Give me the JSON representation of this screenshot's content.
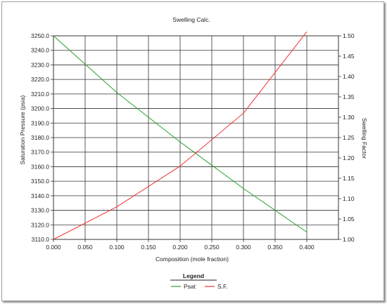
{
  "chart_data": {
    "type": "line",
    "title": "Swelling Calc.",
    "xlabel": "Composition (mole fraction)",
    "ylabel_left": "Saturation Pressure (psia)",
    "ylabel_right": "Swelling Factor",
    "xlim": [
      0,
      0.45
    ],
    "ylim_left": [
      3110,
      3250
    ],
    "ylim_right": [
      1.0,
      1.5
    ],
    "x_ticks": [
      "0.000",
      "0.050",
      "0.100",
      "0.150",
      "0.200",
      "0.250",
      "0.300",
      "0.350",
      "0.400"
    ],
    "y_left_ticks": [
      "3110.0",
      "3120.0",
      "3130.0",
      "3140.0",
      "3150.0",
      "3160.0",
      "3170.0",
      "3180.0",
      "3190.0",
      "3200.0",
      "3210.0",
      "3220.0",
      "3230.0",
      "3240.0",
      "3250.0"
    ],
    "y_right_ticks": [
      "1.00",
      "1.05",
      "1.10",
      "1.15",
      "1.20",
      "1.25",
      "1.30",
      "1.35",
      "1.40",
      "1.45",
      "1.50"
    ],
    "grid": true,
    "legend_title": "Legend",
    "legend_position": "bottom-center",
    "series": [
      {
        "name": "Psat",
        "axis": "left",
        "color": "#2ca02c",
        "x": [
          0.0,
          0.1,
          0.2,
          0.3,
          0.4
        ],
        "values": [
          3250,
          3211,
          3177,
          3145,
          3115
        ]
      },
      {
        "name": "S.F.",
        "axis": "right",
        "color": "#f03030",
        "x": [
          0.0,
          0.1,
          0.2,
          0.3,
          0.4
        ],
        "values": [
          1.0,
          1.08,
          1.18,
          1.31,
          1.51
        ]
      }
    ]
  }
}
